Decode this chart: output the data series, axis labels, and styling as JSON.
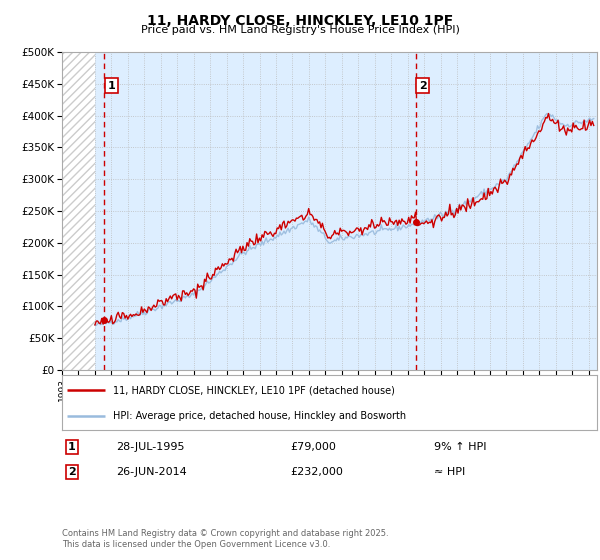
{
  "title": "11, HARDY CLOSE, HINCKLEY, LE10 1PF",
  "subtitle": "Price paid vs. HM Land Registry's House Price Index (HPI)",
  "legend_line1": "11, HARDY CLOSE, HINCKLEY, LE10 1PF (detached house)",
  "legend_line2": "HPI: Average price, detached house, Hinckley and Bosworth",
  "annotation1_date": "28-JUL-1995",
  "annotation1_price": "£79,000",
  "annotation1_hpi": "9% ↑ HPI",
  "annotation2_date": "26-JUN-2014",
  "annotation2_price": "£232,000",
  "annotation2_hpi": "≈ HPI",
  "footnote": "Contains HM Land Registry data © Crown copyright and database right 2025.\nThis data is licensed under the Open Government Licence v3.0.",
  "red_line_color": "#cc0000",
  "blue_line_color": "#99bbdd",
  "vline_color": "#cc0000",
  "grid_color": "#bbbbbb",
  "bg_color": "#ffffff",
  "plot_bg_color": "#ddeeff",
  "hatch_color": "#cccccc",
  "ylim": [
    0,
    500000
  ],
  "yticks": [
    0,
    50000,
    100000,
    150000,
    200000,
    250000,
    300000,
    350000,
    400000,
    450000,
    500000
  ],
  "sale1_x": 1995.57,
  "sale1_y": 79000,
  "sale2_x": 2014.48,
  "sale2_y": 232000,
  "xmin": 1993.0,
  "xmax": 2025.5,
  "hpi_start_x": 1995.0
}
